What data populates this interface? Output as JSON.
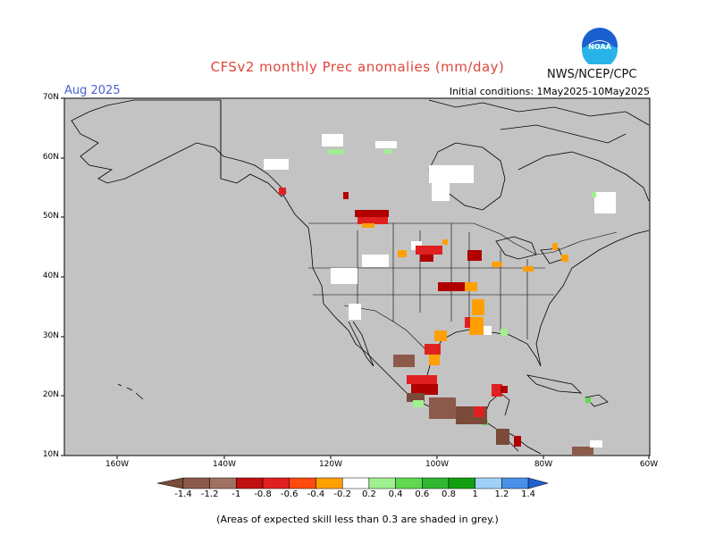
{
  "header": {
    "title": "CFSv2 monthly Prec anomalies (mm/day)",
    "month": "Aug 2025",
    "initial_conditions": "Initial conditions: 1May2025-10May2025",
    "agency": "NWS/NCEP/CPC",
    "logo_text": "NOAA"
  },
  "axes": {
    "lat_labels": [
      "70N",
      "60N",
      "50N",
      "40N",
      "30N",
      "20N",
      "10N"
    ],
    "lon_labels": [
      "160W",
      "140W",
      "120W",
      "100W",
      "80W",
      "60W"
    ]
  },
  "colorbar": {
    "labels": [
      "-1.4",
      "-1.2",
      "-1",
      "-0.8",
      "-0.6",
      "-0.4",
      "-0.2",
      "0.2",
      "0.4",
      "0.6",
      "0.8",
      "1",
      "1.2",
      "1.4"
    ],
    "colors": [
      "#7a4a3a",
      "#8c5a4a",
      "#a07060",
      "#c01010",
      "#e02020",
      "#ff4a10",
      "#ffa000",
      "#ffffff",
      "#a0f090",
      "#60d850",
      "#30b830",
      "#10a010",
      "#a0d0f8",
      "#4a90e8",
      "#2060d0"
    ]
  },
  "footnote": "(Areas of expected skill less than 0.3 are shaded in grey.)",
  "map_colors": {
    "background": "#c3c3c3",
    "brown_dark": "#7a4a3a",
    "brown": "#8c5a4a",
    "dark_red": "#b00000",
    "red": "#e02020",
    "orange_red": "#ff4a10",
    "orange": "#ffa000",
    "white": "#ffffff",
    "light_green": "#a0f090",
    "green": "#60d850"
  }
}
